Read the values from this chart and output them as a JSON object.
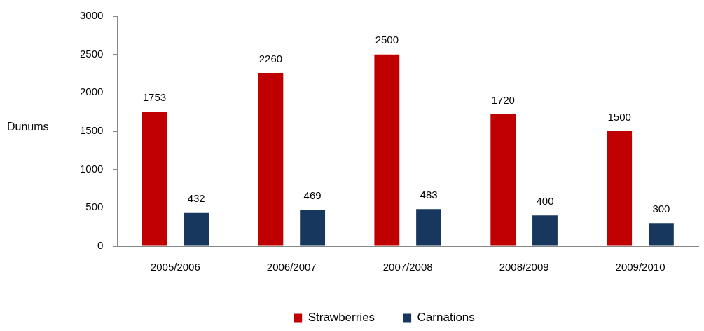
{
  "chart_data": {
    "type": "bar",
    "ylabel": "Dunums",
    "categories": [
      "2005/2006",
      "2006/2007",
      "2007/2008",
      "2008/2009",
      "2009/2010"
    ],
    "series": [
      {
        "name": "Strawberries",
        "color": "#c00000",
        "values": [
          1753,
          2260,
          2500,
          1720,
          1500
        ]
      },
      {
        "name": "Carnations",
        "color": "#17375e",
        "values": [
          432,
          469,
          483,
          400,
          300
        ]
      }
    ],
    "ylim": [
      0,
      3000
    ],
    "yticks": [
      0,
      500,
      1000,
      1500,
      2000,
      2500,
      3000
    ],
    "grid": false,
    "legend": "bottom",
    "data_labels": true
  }
}
